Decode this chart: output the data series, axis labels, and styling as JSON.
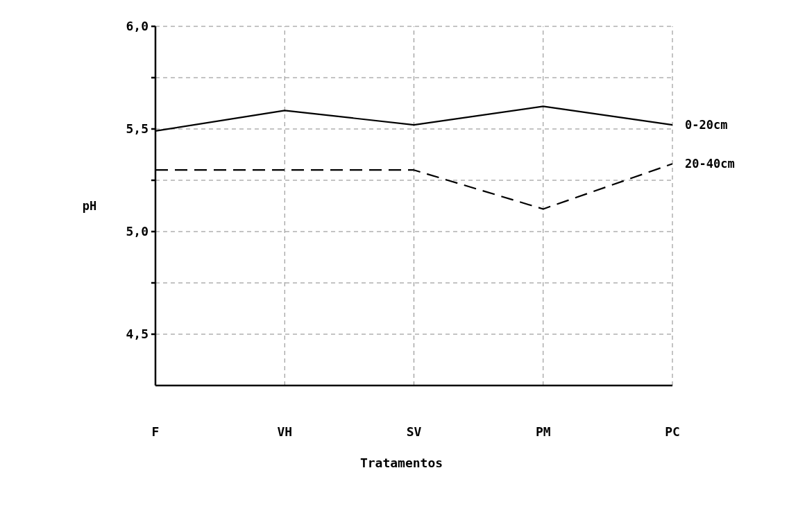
{
  "chart_data": {
    "type": "line",
    "xlabel": "Tratamentos",
    "ylabel": "pH",
    "categories": [
      "F",
      "VH",
      "SV",
      "PM",
      "PC"
    ],
    "series": [
      {
        "name": "0-20cm",
        "color": "#000000",
        "line_style": "solid",
        "values": [
          5.49,
          5.59,
          5.52,
          5.61,
          5.52
        ]
      },
      {
        "name": "20-40cm",
        "color": "#000000",
        "line_style": "dashed",
        "values": [
          5.3,
          5.3,
          5.3,
          5.11,
          5.33
        ]
      }
    ],
    "ylim": [
      4.25,
      6.0
    ],
    "yticks": [
      {
        "value": 4.5,
        "label": "4,5"
      },
      {
        "value": 4.75,
        "label": null
      },
      {
        "value": 5.0,
        "label": "5,0"
      },
      {
        "value": 5.25,
        "label": null
      },
      {
        "value": 5.5,
        "label": "5,5"
      },
      {
        "value": 5.75,
        "label": null
      },
      {
        "value": 6.0,
        "label": "6,0"
      }
    ],
    "grid": true
  }
}
